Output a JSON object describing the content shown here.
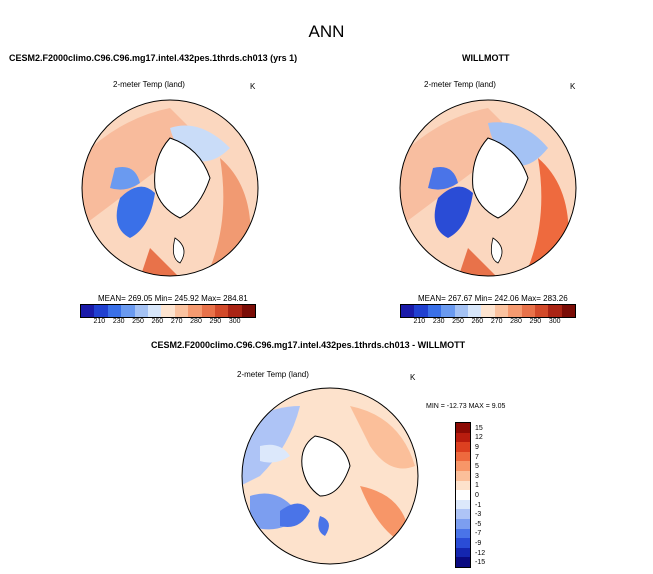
{
  "page_title": "ANN",
  "panels": [
    {
      "title": "CESM2.F2000climo.C96.C96.mg17.intel.432pes.1thrds.ch013 (yrs 1)",
      "subtitle": "2-meter Temp (land)",
      "units": "K",
      "stats": "MEAN= 269.05   Min= 245.92   Max= 284.81"
    },
    {
      "title": "WILLMOTT",
      "subtitle": "2-meter Temp (land)",
      "units": "K",
      "stats": "MEAN= 267.67   Min= 242.06   Max= 283.26"
    }
  ],
  "diff_panel": {
    "title": "CESM2.F2000climo.C96.C96.mg17.intel.432pes.1thrds.ch013 - WILLMOTT",
    "subtitle": "2-meter Temp (land)",
    "units": "K",
    "stats": "MIN = -12.73 MAX =    9.05"
  },
  "colorbar_abs": {
    "colors": [
      "#1a1aa8",
      "#2040d0",
      "#3a70e8",
      "#6a9af0",
      "#a4c2f4",
      "#d7e6fa",
      "#fde4d0",
      "#fbc3a0",
      "#f59a70",
      "#e8724a",
      "#d24a2a",
      "#aa2414",
      "#7a0c06"
    ],
    "labels": [
      "210",
      "230",
      "250",
      "260",
      "270",
      "280",
      "290",
      "300"
    ]
  },
  "colorbar_diff": {
    "colors": [
      "#0a0a80",
      "#1426b0",
      "#2a4cd6",
      "#4a74e8",
      "#7c9ef0",
      "#aec4f6",
      "#dce8fb",
      "#ffffff",
      "#fde2cc",
      "#fbbf9a",
      "#f79668",
      "#ee6a3e",
      "#dc4020",
      "#b81c0e",
      "#8c0a04"
    ],
    "labels": [
      "15",
      "12",
      "9",
      "7",
      "5",
      "3",
      "1",
      "0",
      "-1",
      "-3",
      "-5",
      "-7",
      "-9",
      "-12",
      "-15"
    ]
  }
}
